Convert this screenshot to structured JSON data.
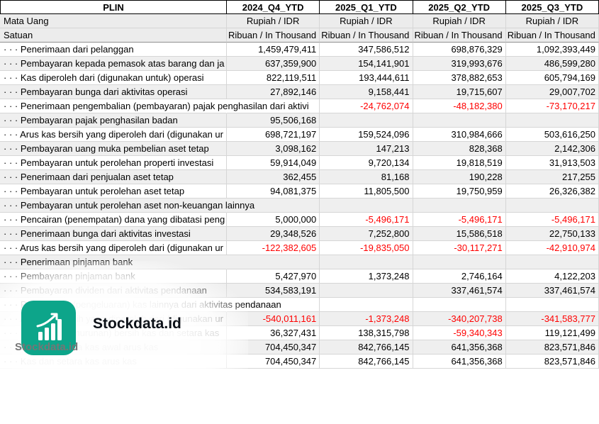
{
  "meta": {
    "colors": {
      "negative": "#ff0000",
      "stripe": "#efefef",
      "gridline": "#d6d6d6",
      "header_border": "#000000",
      "logo": "#0da58a",
      "watermark_text": "#757575",
      "brand_text": "#0c1118"
    }
  },
  "table": {
    "corner_label": "PLIN",
    "columns": [
      "2024_Q4_YTD",
      "2025_Q1_YTD",
      "2025_Q2_YTD",
      "2025_Q3_YTD"
    ],
    "currency_row": {
      "label": "Mata Uang",
      "values": [
        "Rupiah / IDR",
        "Rupiah / IDR",
        "Rupiah / IDR",
        "Rupiah / IDR"
      ]
    },
    "unit_row": {
      "label": "Satuan",
      "values": [
        "Ribuan / In Thousand",
        "Ribuan / In Thousand",
        "Ribuan / In Thousand",
        "Ribuan / In Thousand"
      ]
    },
    "rows": [
      {
        "label": "· · · Penerimaan dari pelanggan",
        "values": [
          "1,459,479,411",
          "347,586,512",
          "698,876,329",
          "1,092,393,449"
        ]
      },
      {
        "label": "· · · Pembayaran kepada pemasok atas barang dan ja",
        "values": [
          "637,359,900",
          "154,141,901",
          "319,993,676",
          "486,599,280"
        ]
      },
      {
        "label": "· · · Kas diperoleh dari (digunakan untuk) operasi",
        "values": [
          "822,119,511",
          "193,444,611",
          "378,882,653",
          "605,794,169"
        ]
      },
      {
        "label": "· · · Pembayaran bunga dari aktivitas operasi",
        "values": [
          "27,892,146",
          "9,158,441",
          "19,715,607",
          "29,007,702"
        ]
      },
      {
        "label": "· · · Penerimaan pengembalian (pembayaran) pajak penghasilan dari aktivi",
        "values": [
          "",
          "-24,762,074",
          "-48,182,380",
          "-73,170,217"
        ]
      },
      {
        "label": "· · · Pembayaran pajak penghasilan badan",
        "values": [
          "95,506,168",
          "",
          "",
          ""
        ]
      },
      {
        "label": "· · · Arus kas bersih yang diperoleh dari (digunakan ur",
        "values": [
          "698,721,197",
          "159,524,096",
          "310,984,666",
          "503,616,250"
        ]
      },
      {
        "label": "· · · Pembayaran uang muka pembelian aset tetap",
        "values": [
          "3,098,162",
          "147,213",
          "828,368",
          "2,142,306"
        ]
      },
      {
        "label": "· · · Pembayaran untuk perolehan properti investasi",
        "values": [
          "59,914,049",
          "9,720,134",
          "19,818,519",
          "31,913,503"
        ]
      },
      {
        "label": "· · · Penerimaan dari penjualan aset tetap",
        "values": [
          "362,455",
          "81,168",
          "190,228",
          "217,255"
        ]
      },
      {
        "label": "· · · Pembayaran untuk perolehan aset tetap",
        "values": [
          "94,081,375",
          "11,805,500",
          "19,750,959",
          "26,326,382"
        ]
      },
      {
        "label": "· · · Pembayaran untuk perolehan aset non-keuangan lainnya",
        "values": [
          "",
          "",
          "",
          ""
        ]
      },
      {
        "label": "· · · Pencairan (penempatan) dana yang dibatasi peng",
        "values": [
          "5,000,000",
          "-5,496,171",
          "-5,496,171",
          "-5,496,171"
        ]
      },
      {
        "label": "· · · Penerimaan bunga dari aktivitas investasi",
        "values": [
          "29,348,526",
          "7,252,800",
          "15,586,518",
          "22,750,133"
        ]
      },
      {
        "label": "· · · Arus kas bersih yang diperoleh dari (digunakan ur",
        "values": [
          "-122,382,605",
          "-19,835,050",
          "-30,117,271",
          "-42,910,974"
        ]
      },
      {
        "label": "· · · Penerimaan pinjaman bank",
        "values": [
          "",
          "",
          "",
          ""
        ]
      },
      {
        "label": "· · · Pembayaran pinjaman bank",
        "values": [
          "5,427,970",
          "1,373,248",
          "2,746,164",
          "4,122,203"
        ]
      },
      {
        "label": "· · · Pembayaran dividen dari aktivitas pendanaan",
        "values": [
          "534,583,191",
          "",
          "337,461,574",
          "337,461,574"
        ]
      },
      {
        "label": "· · · Penerimaan (pengeluaran) kas lainnya dari aktivitas pendanaan",
        "values": [
          "",
          "",
          "",
          ""
        ]
      },
      {
        "label": "· · · Arus kas bersih yang diperoleh dari (digunakan ur",
        "values": [
          "-540,011,161",
          "-1,373,248",
          "-340,207,738",
          "-341,583,777"
        ]
      },
      {
        "label": "· · · Kenaikan (penurunan) bersih kas dan setara kas",
        "values": [
          "36,327,431",
          "138,315,798",
          "-59,340,343",
          "119,121,499"
        ]
      },
      {
        "label": "· · · Kas dan setara kas awal arus kas",
        "values": [
          "704,450,347",
          "842,766,145",
          "641,356,368",
          "823,571,846"
        ]
      },
      {
        "label": "· · · Kas dan setara kas arus kas",
        "values": [
          "704,450,347",
          "842,766,145",
          "641,356,368",
          "823,571,846"
        ]
      }
    ]
  },
  "watermark": {
    "brand_title": "Stockdata.id",
    "small_text": "Stockdata.id",
    "logo_icon": "bar-chart-icon"
  }
}
